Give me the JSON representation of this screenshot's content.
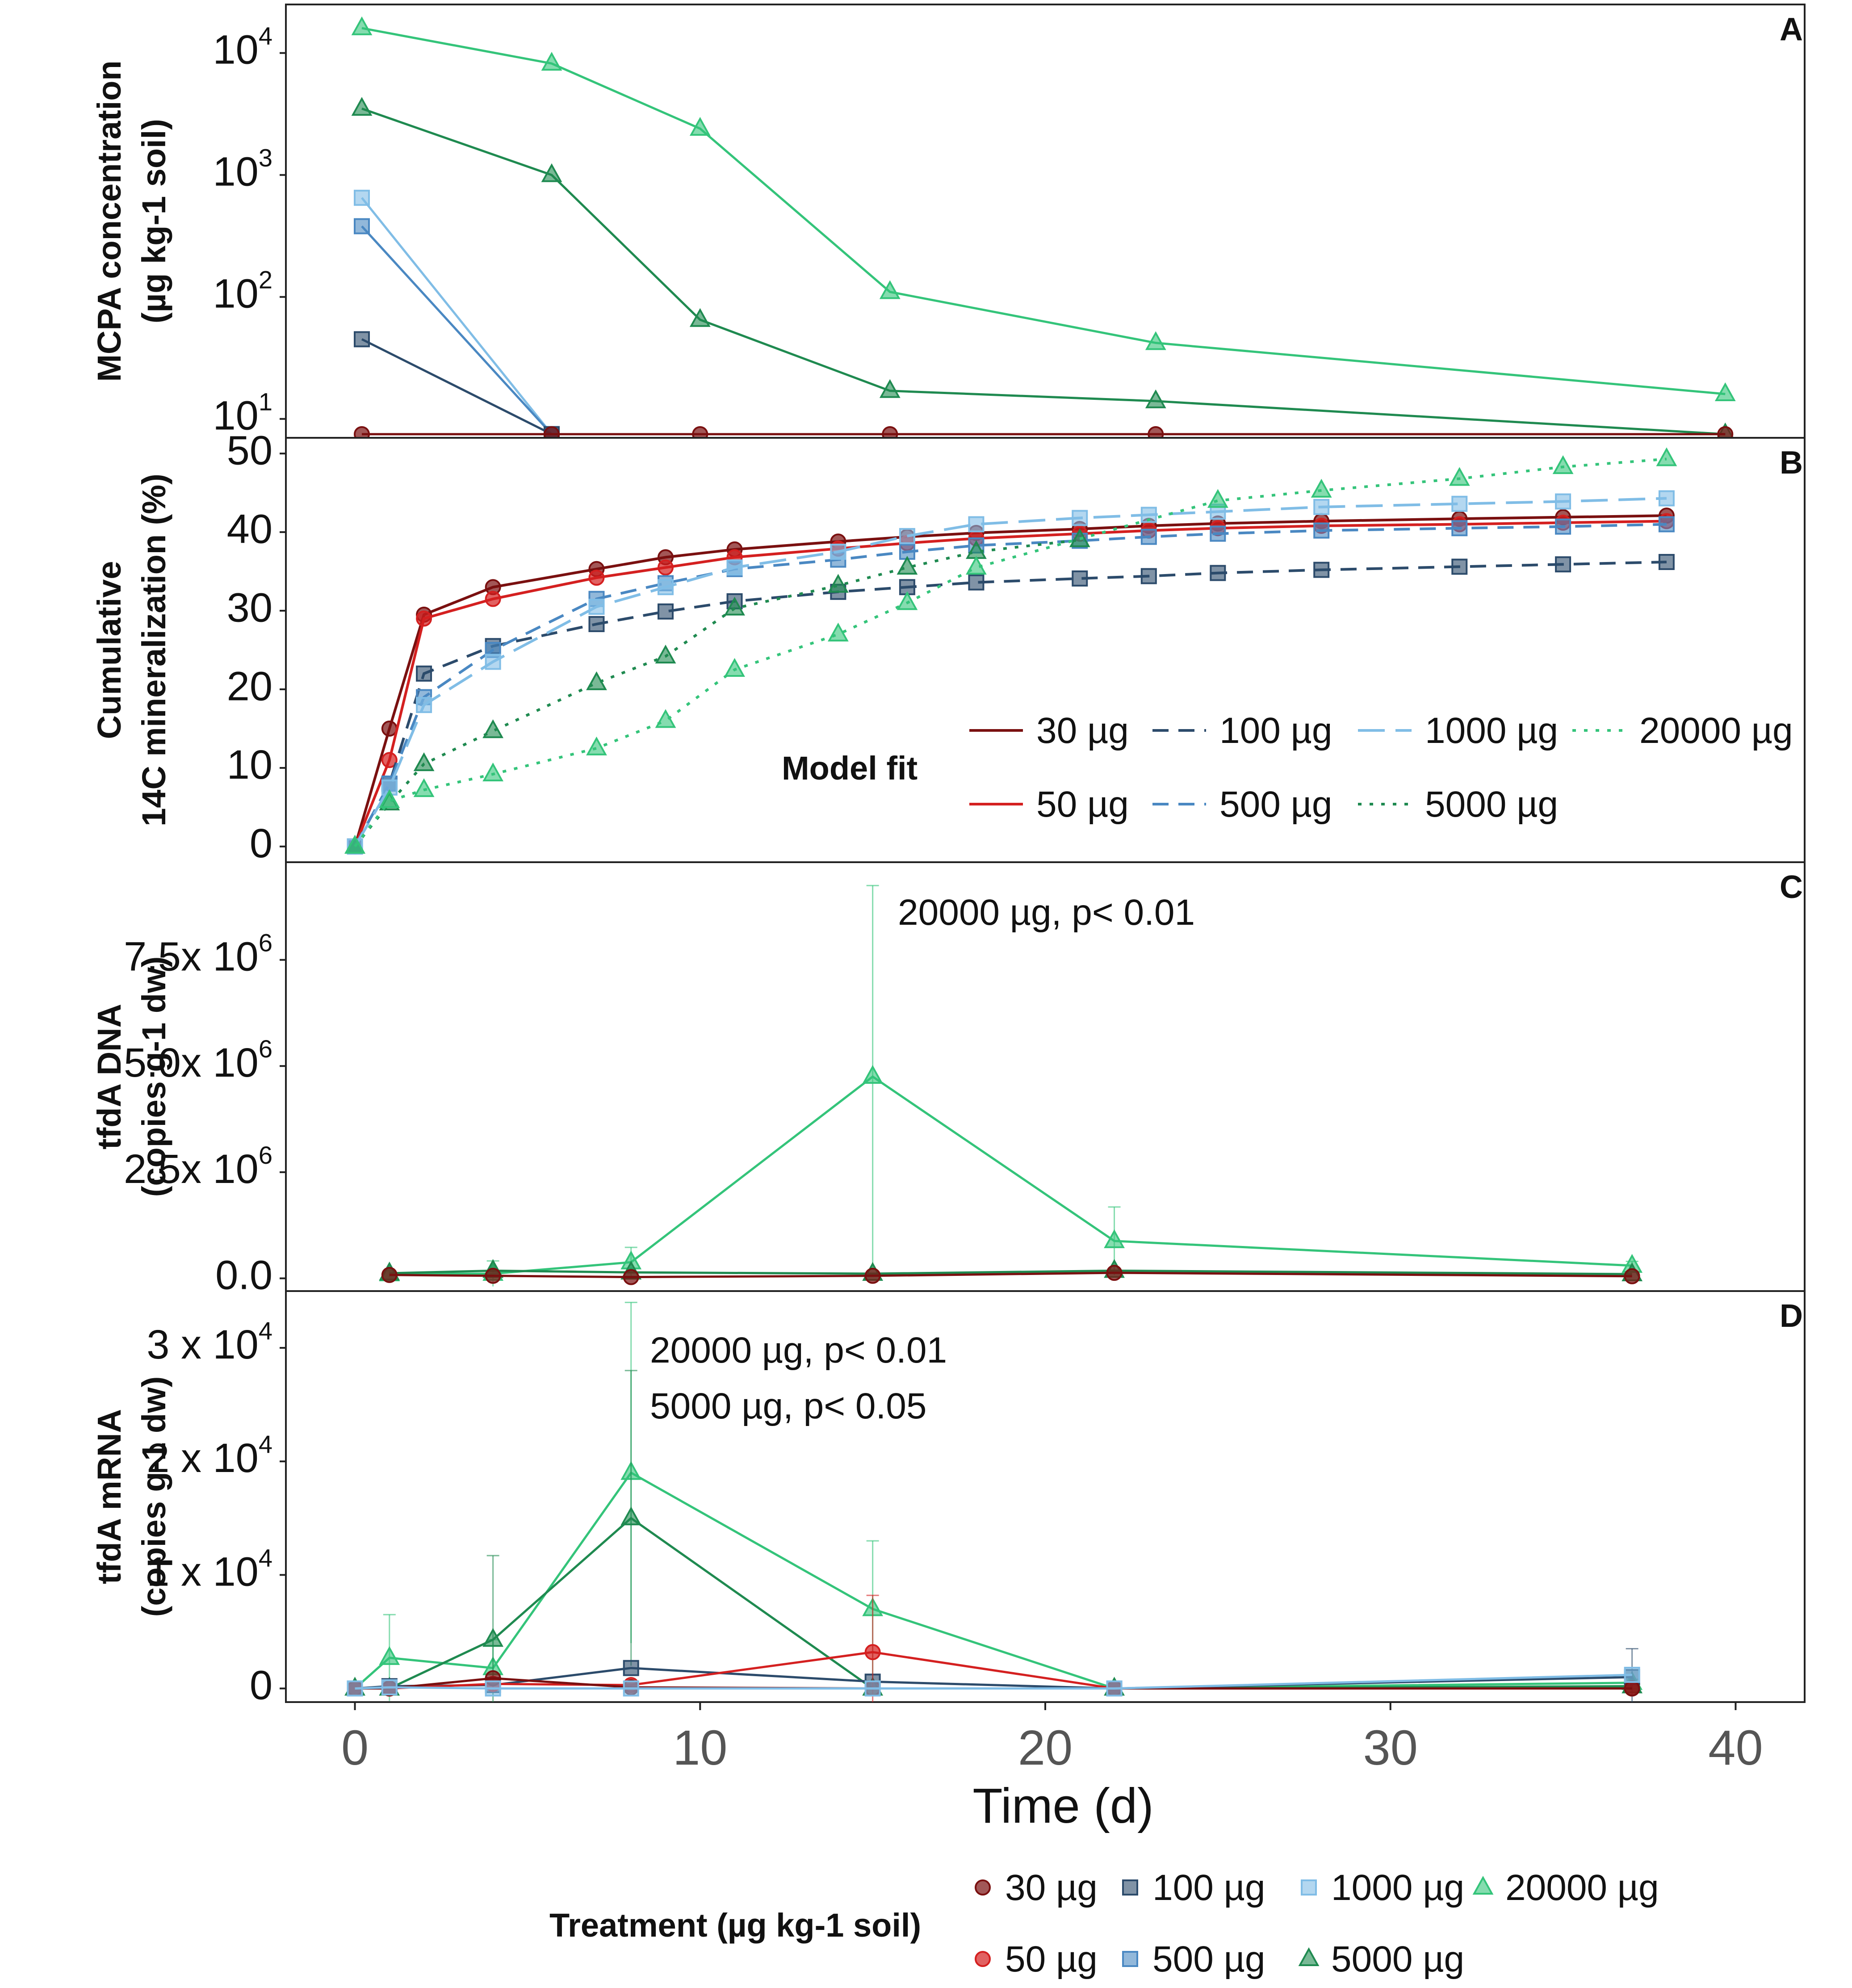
{
  "colors": {
    "s30": "#7a1010",
    "s50": "#d42020",
    "s100": "#2c4b6b",
    "s500": "#4a88c2",
    "s1000": "#80bde6",
    "s5000": "#1f8a50",
    "s20000": "#34c47a"
  },
  "chart_data": [
    {
      "type": "line",
      "panel": "A",
      "yscale": "log",
      "ylabel": "MCPA concentration",
      "ylabel_line2": "(µg kg-1 soil)",
      "ytick_labels": [
        "10",
        "10",
        "10",
        "10"
      ],
      "ytick_exponents": [
        "4",
        "3",
        "2",
        "1"
      ],
      "ytick_values": [
        10000,
        1000,
        100,
        10
      ],
      "ylim": [
        7,
        25000
      ],
      "xlim": [
        -2,
        42
      ],
      "series": [
        {
          "name": "20000 µg",
          "x": [
            0.2,
            5.7,
            10,
            15.5,
            23.2,
            39.7
          ],
          "y": [
            16000,
            8200,
            2400,
            110,
            42,
            16
          ]
        },
        {
          "name": "5000 µg",
          "x": [
            0.2,
            5.7,
            10,
            15.5,
            23.2,
            39.7
          ],
          "y": [
            3500,
            1000,
            65,
            17,
            14,
            7.5
          ]
        },
        {
          "name": "1000 µg",
          "x": [
            0.2,
            5.7
          ],
          "y": [
            650,
            7.5
          ]
        },
        {
          "name": "500 µg",
          "x": [
            0.2,
            5.7
          ],
          "y": [
            380,
            7.5
          ]
        },
        {
          "name": "100 µg",
          "x": [
            0.2,
            5.7
          ],
          "y": [
            45,
            7.5
          ]
        },
        {
          "name": "30 µg",
          "x": [
            0.2,
            5.7,
            10,
            15.5,
            23.2,
            39.7
          ],
          "y": [
            7.5,
            7.5,
            7.5,
            7.5,
            7.5,
            7.5
          ]
        }
      ]
    },
    {
      "type": "line",
      "panel": "B",
      "ylabel": "Cumulative",
      "ylabel_line2": "14C mineralization (%)",
      "yticks": [
        0,
        10,
        20,
        30,
        40,
        50
      ],
      "ylim": [
        -2,
        52
      ],
      "xlim": [
        -2,
        42
      ],
      "legend_title": "Model fit",
      "legend": [
        "30 µg",
        "100 µg",
        "1000 µg",
        "20000 µg",
        "50 µg",
        "500 µg",
        "5000 µg"
      ],
      "series": [
        {
          "name": "30 µg",
          "x": [
            0,
            1,
            2,
            4,
            7,
            9,
            11,
            14,
            16,
            18,
            21,
            23,
            25,
            28,
            32,
            35,
            38
          ],
          "y": [
            0,
            15,
            29.5,
            33,
            35.3,
            36.8,
            37.8,
            38.8,
            39.4,
            39.9,
            40.4,
            40.8,
            41.1,
            41.4,
            41.7,
            41.9,
            42.1
          ]
        },
        {
          "name": "50 µg",
          "x": [
            0,
            1,
            2,
            4,
            7,
            9,
            11,
            14,
            16,
            18,
            21,
            23,
            25,
            28,
            32,
            35,
            38
          ],
          "y": [
            0,
            11,
            29,
            31.5,
            34.2,
            35.5,
            36.8,
            37.9,
            38.6,
            39.2,
            39.8,
            40.2,
            40.5,
            40.8,
            41,
            41.2,
            41.4
          ]
        },
        {
          "name": "100 µg",
          "x": [
            0,
            1,
            2,
            4,
            7,
            9,
            11,
            14,
            16,
            18,
            21,
            23,
            25,
            28,
            32,
            35,
            38
          ],
          "y": [
            0,
            8,
            22,
            25.5,
            28.3,
            29.9,
            31.2,
            32.4,
            33,
            33.6,
            34.1,
            34.4,
            34.8,
            35.2,
            35.6,
            35.9,
            36.2
          ]
        },
        {
          "name": "500 µg",
          "x": [
            0,
            1,
            2,
            4,
            7,
            9,
            11,
            14,
            16,
            18,
            21,
            23,
            25,
            28,
            32,
            35,
            38
          ],
          "y": [
            0,
            8,
            19,
            25,
            31.5,
            33.5,
            35.3,
            36.5,
            37.5,
            38.3,
            38.9,
            39.4,
            39.8,
            40.2,
            40.5,
            40.7,
            41
          ]
        },
        {
          "name": "1000 µg",
          "x": [
            0,
            1,
            2,
            4,
            7,
            9,
            11,
            14,
            16,
            18,
            21,
            23,
            25,
            28,
            32,
            35,
            38
          ],
          "y": [
            0,
            7.5,
            18,
            23.5,
            30.5,
            33,
            35.5,
            37.5,
            39.5,
            41,
            41.8,
            42.2,
            42.6,
            43.2,
            43.6,
            43.9,
            44.3
          ]
        },
        {
          "name": "5000 µg",
          "x": [
            0,
            1,
            2,
            4,
            7,
            9,
            11,
            14,
            16,
            18,
            21
          ],
          "y": [
            0,
            5.5,
            10.5,
            14.7,
            20.8,
            24.2,
            30.3,
            33.2,
            35.5,
            37.5,
            39
          ]
        },
        {
          "name": "20000 µg",
          "x": [
            0,
            1,
            2,
            4,
            7,
            9,
            11,
            14,
            16,
            18,
            25,
            28,
            32,
            35,
            38
          ],
          "y": [
            0,
            5.8,
            7.2,
            9.2,
            12.5,
            16,
            22.5,
            27,
            31,
            35.5,
            44,
            45.3,
            46.8,
            48.3,
            49.3
          ]
        }
      ]
    },
    {
      "type": "line",
      "panel": "C",
      "ylabel": "tfdA DNA",
      "ylabel_line2": "(copies g-1 dw)",
      "yticks": [
        0,
        2500000,
        5000000,
        7500000
      ],
      "ytick_labels": [
        "0.0",
        "2.5x 10",
        "5.0x 10",
        "7.5x 10"
      ],
      "ytick_exponents": [
        "",
        "6",
        "6",
        "6"
      ],
      "ylim": [
        -300000,
        9800000
      ],
      "xlim": [
        -2,
        42
      ],
      "annotation": "20000 µg, p< 0.01",
      "series": [
        {
          "name": "20000 µg",
          "x": [
            1,
            4,
            8,
            15,
            22,
            37
          ],
          "y": [
            100000,
            110000,
            380000,
            4750000,
            880000,
            300000
          ],
          "err": [
            80000,
            300000,
            350000,
            4500000,
            800000,
            100000
          ]
        },
        {
          "name": "5000 µg",
          "x": [
            1,
            4,
            8,
            15,
            22,
            37
          ],
          "y": [
            120000,
            180000,
            140000,
            110000,
            180000,
            100000
          ]
        },
        {
          "name": "30 µg",
          "x": [
            1,
            4,
            8,
            15,
            22,
            37
          ],
          "y": [
            80000,
            60000,
            30000,
            60000,
            130000,
            50000
          ]
        }
      ]
    },
    {
      "type": "line",
      "panel": "D",
      "ylabel": "tfdA mRNA",
      "ylabel_line2": "(copies g-1 dw)",
      "yticks": [
        0,
        10000,
        20000,
        30000
      ],
      "ytick_labels": [
        "0",
        "1 x 10",
        "2 x 10",
        "3 x 10"
      ],
      "ytick_exponents": [
        "",
        "4",
        "4",
        "4"
      ],
      "ylim": [
        -1200,
        35000
      ],
      "xlim": [
        -2,
        42
      ],
      "annotations": [
        "20000 µg, p< 0.01",
        "5000 µg, p< 0.05"
      ],
      "series": [
        {
          "name": "20000 µg",
          "x": [
            0,
            1,
            4,
            8,
            15,
            22,
            37
          ],
          "y": [
            0,
            2700,
            1800,
            19000,
            7000,
            0,
            500
          ],
          "err": [
            0,
            3800,
            2500,
            15000,
            6000,
            0,
            300
          ]
        },
        {
          "name": "5000 µg",
          "x": [
            0,
            1,
            4,
            8,
            15,
            22,
            37
          ],
          "y": [
            0,
            0,
            4300,
            15000,
            0,
            0,
            200
          ],
          "err": [
            0,
            0,
            7400,
            13000,
            0,
            0,
            300
          ]
        },
        {
          "name": "100 µg",
          "x": [
            0,
            1,
            4,
            8,
            15,
            22,
            37
          ],
          "y": [
            0,
            200,
            300,
            1800,
            600,
            0,
            1000
          ],
          "err": [
            0,
            0,
            0,
            0,
            0,
            0,
            2500
          ]
        },
        {
          "name": "50 µg",
          "x": [
            0,
            1,
            4,
            8,
            15,
            22,
            37
          ],
          "y": [
            0,
            0,
            400,
            300,
            3200,
            0,
            0
          ],
          "err": [
            0,
            0,
            0,
            0,
            5000,
            0,
            0
          ]
        },
        {
          "name": "30 µg",
          "x": [
            0,
            1,
            4,
            8,
            15,
            22,
            37
          ],
          "y": [
            0,
            0,
            900,
            100,
            0,
            0,
            0
          ]
        },
        {
          "name": "1000 µg",
          "x": [
            0,
            1,
            4,
            8,
            15,
            22,
            37
          ],
          "y": [
            0,
            100,
            0,
            0,
            0,
            0,
            1200
          ]
        }
      ]
    }
  ],
  "xaxis": {
    "label": "Time (d)",
    "ticks": [
      0,
      10,
      20,
      30,
      40
    ],
    "xlim": [
      -2,
      42
    ]
  },
  "treatment_legend": {
    "title": "Treatment (µg kg-1 soil)",
    "items": [
      "30 µg",
      "100 µg",
      "1000 µg",
      "20000 µg",
      "50 µg",
      "500 µg",
      "5000 µg"
    ]
  },
  "labels": {
    "A": "A",
    "B": "B",
    "C": "C",
    "D": "D"
  }
}
